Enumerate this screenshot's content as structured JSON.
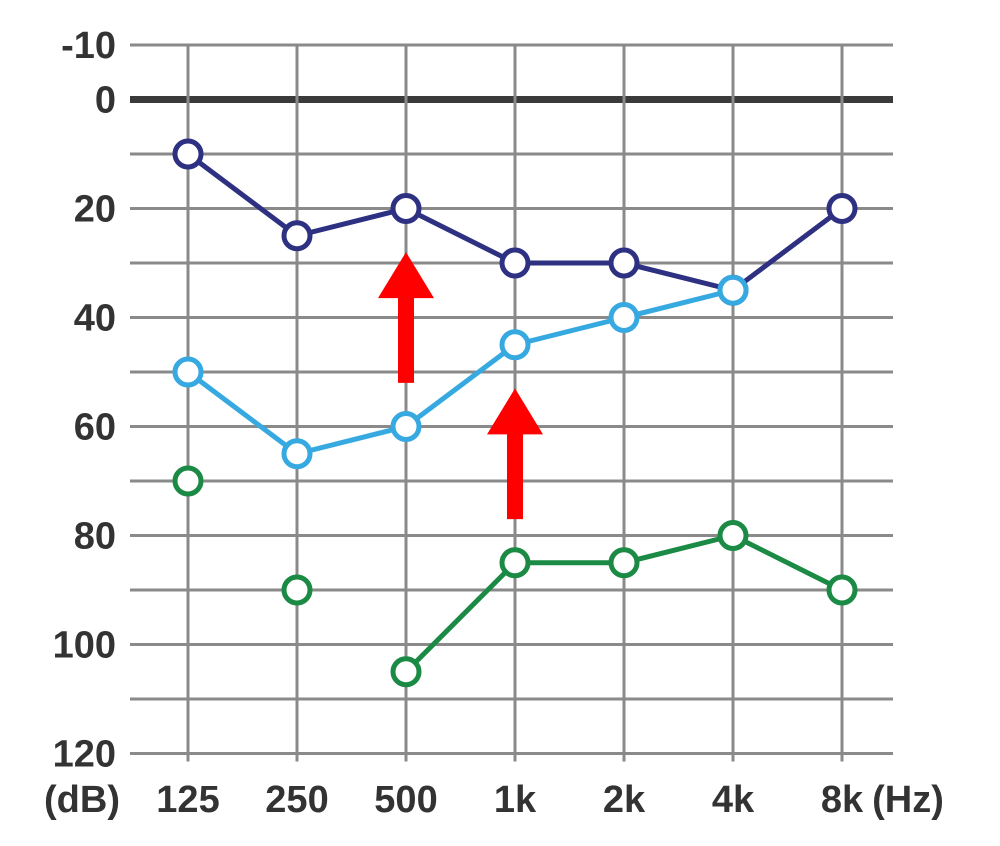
{
  "chart_data": {
    "type": "line",
    "title": "",
    "xlabel": "(Hz)",
    "ylabel": "(dB)",
    "categories": [
      "125",
      "250",
      "500",
      "1k",
      "2k",
      "4k",
      "8k"
    ],
    "y_ticks": [
      "-10",
      "0",
      "20",
      "40",
      "60",
      "80",
      "100",
      "120"
    ],
    "ylim": [
      -10,
      120
    ],
    "y_inverted": true,
    "grid": true,
    "series": [
      {
        "color": "#2e3182",
        "values": [
          10,
          25,
          20,
          30,
          30,
          35,
          20
        ],
        "connected": [
          true,
          true,
          true,
          true,
          true,
          true
        ]
      },
      {
        "color": "#36a9e1",
        "values": [
          50,
          65,
          60,
          45,
          40,
          35,
          null
        ],
        "connected": [
          true,
          true,
          true,
          true,
          true
        ]
      },
      {
        "color": "#1a8a44",
        "values": [
          70,
          90,
          105,
          85,
          85,
          80,
          90
        ],
        "connected": [
          false,
          false,
          true,
          true,
          true,
          true
        ]
      }
    ],
    "arrows": [
      {
        "category": "500",
        "from": 52,
        "to": 28,
        "color": "#ff0000"
      },
      {
        "category": "1k",
        "from": 77,
        "to": 53,
        "color": "#ff0000"
      }
    ]
  }
}
